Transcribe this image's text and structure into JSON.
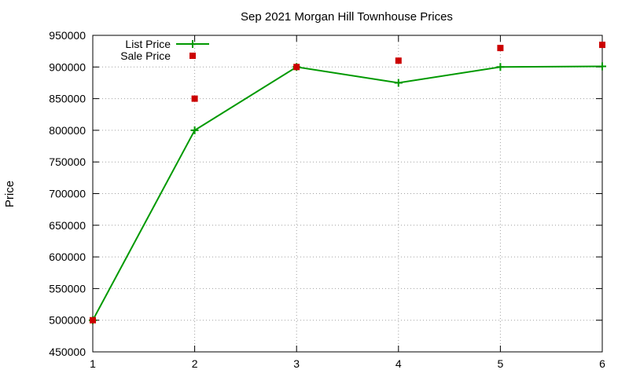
{
  "chart_data": {
    "type": "line",
    "title": "Sep 2021 Morgan Hill Townhouse Prices",
    "ylabel": "Price",
    "xlabel": "",
    "x": [
      1,
      2,
      3,
      4,
      5,
      6
    ],
    "xlim": [
      1,
      6
    ],
    "ylim": [
      450000,
      950000
    ],
    "xticks": [
      1,
      2,
      3,
      4,
      5,
      6
    ],
    "yticks": [
      450000,
      500000,
      550000,
      600000,
      650000,
      700000,
      750000,
      800000,
      850000,
      900000,
      950000
    ],
    "grid": true,
    "legend_position": "top-left",
    "series": [
      {
        "name": "List Price",
        "style": "line-with-plus-markers",
        "color": "#009900",
        "values": [
          500000,
          800000,
          900000,
          875000,
          900000,
          901000
        ]
      },
      {
        "name": "Sale Price",
        "style": "square-markers",
        "color": "#cc0000",
        "values": [
          500000,
          850000,
          900000,
          910000,
          930000,
          935000
        ]
      }
    ]
  }
}
